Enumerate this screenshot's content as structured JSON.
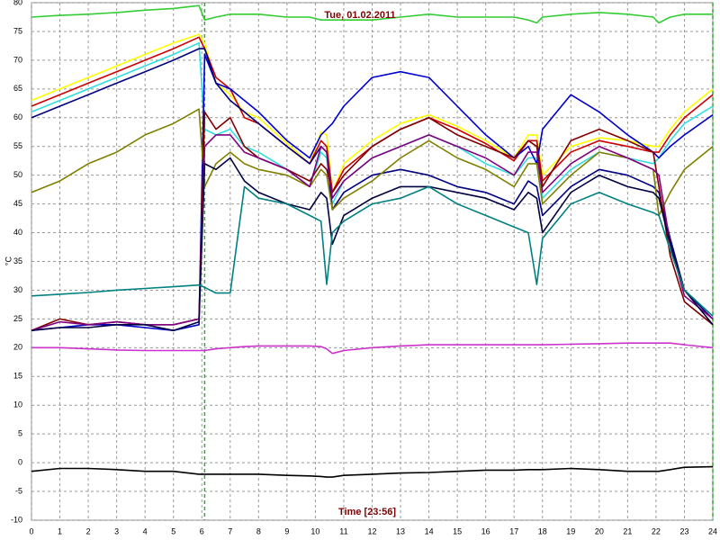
{
  "chart_data": {
    "type": "line",
    "title": "Tue, 01.02.2011",
    "xlabel": "Time [23:56]",
    "ylabel": "°C",
    "x": [
      0,
      1,
      2,
      3,
      4,
      5,
      5.9,
      6.1,
      6.5,
      7,
      7.5,
      8,
      9,
      9.8,
      10.2,
      10.4,
      10.6,
      11,
      12,
      13,
      14,
      15,
      16,
      17,
      17.5,
      17.8,
      18,
      19,
      20,
      21,
      21.9,
      22.1,
      22.5,
      23,
      24
    ],
    "series": [
      {
        "color": "#33cc33",
        "values": [
          77.5,
          77.8,
          78,
          78.3,
          78.7,
          79,
          79.5,
          77,
          77.5,
          78,
          78,
          78,
          77.5,
          77.5,
          77,
          77,
          77,
          77,
          77,
          77.5,
          78,
          77.5,
          77.5,
          77.5,
          77,
          76.5,
          77.5,
          78,
          78.3,
          78,
          77.5,
          76.5,
          77.5,
          78,
          78
        ]
      },
      {
        "color": "#ffff00",
        "values": [
          63,
          65,
          67,
          69,
          71,
          73,
          74.5,
          73,
          66,
          64,
          61,
          60,
          55.5,
          52,
          57.5,
          57,
          47,
          52,
          56,
          59,
          60.5,
          58.5,
          56,
          53,
          57,
          57,
          50,
          55,
          56.5,
          56,
          55,
          55,
          58,
          61,
          65
        ]
      },
      {
        "color": "#cc0000",
        "values": [
          62,
          64,
          66,
          68,
          70,
          72,
          74,
          72,
          67,
          65,
          60,
          59,
          55,
          52,
          56,
          55,
          47,
          51,
          55,
          58,
          60,
          58,
          55.5,
          52.5,
          56,
          56,
          49,
          54,
          56,
          55,
          54,
          54,
          57,
          60,
          64
        ]
      },
      {
        "color": "#33dddd",
        "values": [
          61,
          63,
          65,
          67,
          69,
          71,
          73,
          58,
          57,
          58,
          55,
          54,
          51,
          48,
          54,
          53,
          45,
          49,
          53,
          55,
          57,
          55,
          52,
          50,
          53,
          53,
          46,
          51,
          54,
          53,
          52,
          53,
          56,
          59,
          62
        ]
      },
      {
        "color": "#0000cc",
        "values": [
          23,
          23.5,
          24,
          24,
          23.5,
          23,
          24,
          71,
          66,
          65,
          63,
          61,
          56,
          53,
          57,
          58,
          59,
          62,
          67,
          68,
          67,
          62,
          57,
          53,
          55,
          52,
          58,
          64,
          61,
          57,
          54,
          53,
          55,
          57,
          60.5
        ]
      },
      {
        "color": "#000080",
        "values": [
          60,
          62,
          64,
          66,
          68,
          70,
          72,
          72,
          66,
          63,
          61,
          59,
          55,
          52,
          55,
          54,
          44,
          47,
          50,
          51,
          50,
          48,
          47,
          45,
          49,
          48,
          43,
          48,
          51,
          50,
          48,
          47,
          39,
          30,
          25
        ]
      },
      {
        "color": "#808000",
        "values": [
          47,
          49,
          52,
          54,
          57,
          59,
          61.5,
          48,
          52,
          54,
          52,
          51,
          50,
          48,
          51,
          50,
          44,
          46,
          49,
          53,
          56,
          53,
          51,
          48,
          52,
          52,
          45,
          50,
          54,
          53,
          51,
          43,
          47,
          51,
          55
        ]
      },
      {
        "color": "#800000",
        "values": [
          23,
          25,
          24,
          24.5,
          24,
          24,
          25,
          61,
          58,
          60,
          55,
          53,
          51,
          49,
          52,
          51,
          47,
          50,
          55,
          58,
          60,
          57,
          55,
          53,
          56,
          55,
          48,
          56,
          58,
          56,
          54,
          48,
          36,
          28,
          24
        ]
      },
      {
        "color": "#800080",
        "values": [
          23,
          24.5,
          24,
          24.5,
          24,
          24,
          25,
          55,
          57,
          57,
          54,
          53,
          51,
          48,
          55,
          54,
          46,
          49,
          53,
          55,
          57,
          55,
          53,
          50,
          54,
          54,
          47,
          52,
          55,
          53,
          51,
          50,
          38,
          29,
          25
        ]
      },
      {
        "color": "#000040",
        "values": [
          23,
          23.5,
          23.5,
          24,
          24,
          23,
          24.5,
          52,
          51,
          53,
          49,
          47,
          45,
          44,
          47,
          46,
          38,
          43,
          46,
          48,
          48,
          47,
          46,
          44,
          47,
          46,
          40,
          47,
          50,
          48,
          47,
          46,
          38,
          30,
          24
        ]
      },
      {
        "color": "#008080",
        "values": [
          29,
          29.3,
          29.6,
          30,
          30.3,
          30.6,
          30.9,
          30.5,
          29.5,
          29.5,
          48,
          46,
          45,
          43,
          42,
          31,
          40,
          42,
          45,
          46,
          48,
          45,
          43,
          41,
          40,
          31,
          39,
          45,
          47,
          45,
          43.5,
          43,
          37,
          30,
          25.5
        ]
      },
      {
        "color": "#cc33cc",
        "values": [
          20,
          20,
          19.8,
          19.6,
          19.5,
          19.5,
          19.5,
          19.5,
          19.8,
          20,
          20.2,
          20.3,
          20.3,
          20.3,
          20.2,
          19.8,
          19,
          19.5,
          20,
          20.3,
          20.5,
          20.5,
          20.5,
          20.5,
          20.5,
          20.5,
          20.5,
          20.6,
          20.7,
          20.8,
          20.8,
          20.8,
          20.8,
          20.5,
          20
        ]
      },
      {
        "color": "#000000",
        "values": [
          -1.5,
          -1,
          -1,
          -1.2,
          -1.5,
          -1.5,
          -2,
          -2,
          -2,
          -2,
          -2,
          -2,
          -2.2,
          -2.3,
          -2.4,
          -2.5,
          -2.5,
          -2.2,
          -2,
          -1.8,
          -1.7,
          -1.5,
          -1.3,
          -1.3,
          -1.2,
          -1.2,
          -1.2,
          -1,
          -1.2,
          -1.5,
          -1.5,
          -1.5,
          -1.2,
          -0.8,
          -0.7
        ]
      }
    ],
    "xlim": [
      0,
      24
    ],
    "ylim": [
      -10,
      80
    ],
    "xticks": [
      0,
      1,
      2,
      3,
      4,
      5,
      6,
      7,
      8,
      9,
      10,
      11,
      12,
      13,
      14,
      15,
      16,
      17,
      18,
      19,
      20,
      21,
      22,
      23,
      24
    ],
    "yticks": [
      -10,
      -5,
      0,
      5,
      10,
      15,
      20,
      25,
      30,
      35,
      40,
      45,
      50,
      55,
      60,
      65,
      70,
      75,
      80
    ],
    "grid": true,
    "vlines": [
      6.1,
      24
    ],
    "vline_color": "#33aa33"
  }
}
